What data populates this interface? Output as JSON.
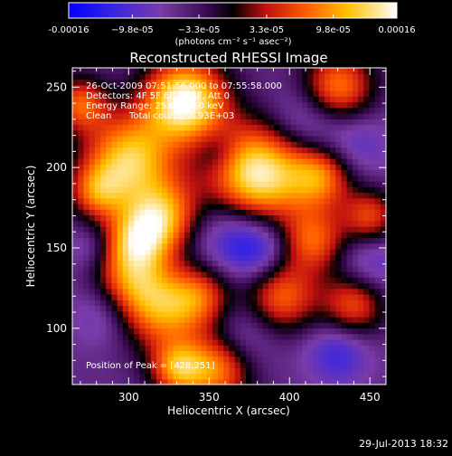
{
  "chart_data": {
    "type": "heatmap",
    "title": "Reconstructed RHESSI Image",
    "xlabel": "Heliocentric X (arcsec)",
    "ylabel": "Heliocentric Y (arcsec)",
    "xlim": [
      265,
      460
    ],
    "ylim": [
      65,
      262
    ],
    "x_ticks": [
      300,
      350,
      400,
      450
    ],
    "y_ticks": [
      100,
      150,
      200,
      250
    ],
    "colorbar": {
      "min": -0.00016,
      "max": 0.00016,
      "tick_values": [
        -0.00016,
        -9.8e-05,
        -3.3e-05,
        3.3e-05,
        9.8e-05,
        0.00016
      ],
      "tick_labels": [
        "-0.00016",
        "−9.8e-05",
        "−3.3e-05",
        "3.3e-05",
        "9.8e-05",
        "0.00016"
      ],
      "unit_label": "(photons cm⁻² s⁻¹ asec⁻²)",
      "colormap": [
        "#0000ff",
        "#6a3cc8",
        "#3a0a50",
        "#000000",
        "#c01010",
        "#ff7a00",
        "#ffd000",
        "#ffffff"
      ]
    },
    "annotations": {
      "time_range": "26-Oct-2009 07:51:56.000 to 07:55:58.000",
      "detectors": "Detectors: 4F 5F 6F 7F 8F, Att 0",
      "energy_range": "Energy Range: 25.0 - 50.0 keV",
      "algorithm": "Clean",
      "total_counts": "Total counts: 6.93E+03",
      "peak_position": "Position of Peak = [428,251]"
    },
    "peak": {
      "x": 428,
      "y": 251
    },
    "blobs": [
      {
        "x": 335,
        "y": 242,
        "v": 1.0,
        "s": 18
      },
      {
        "x": 380,
        "y": 196,
        "v": 0.95,
        "s": 22
      },
      {
        "x": 300,
        "y": 205,
        "v": 0.75,
        "s": 20
      },
      {
        "x": 322,
        "y": 170,
        "v": 0.55,
        "s": 16
      },
      {
        "x": 305,
        "y": 155,
        "v": 0.5,
        "s": 14
      },
      {
        "x": 300,
        "y": 130,
        "v": 0.35,
        "s": 16
      },
      {
        "x": 320,
        "y": 112,
        "v": 0.5,
        "s": 18
      },
      {
        "x": 345,
        "y": 120,
        "v": 0.3,
        "s": 14
      },
      {
        "x": 355,
        "y": 75,
        "v": 0.55,
        "s": 16
      },
      {
        "x": 330,
        "y": 75,
        "v": 0.45,
        "s": 12
      },
      {
        "x": 430,
        "y": 250,
        "v": 0.55,
        "s": 16
      },
      {
        "x": 420,
        "y": 195,
        "v": 0.45,
        "s": 14
      },
      {
        "x": 415,
        "y": 155,
        "v": 0.4,
        "s": 14
      },
      {
        "x": 395,
        "y": 120,
        "v": 0.45,
        "s": 16
      },
      {
        "x": 440,
        "y": 115,
        "v": 0.4,
        "s": 14
      },
      {
        "x": 450,
        "y": 170,
        "v": 0.35,
        "s": 12
      },
      {
        "x": 270,
        "y": 240,
        "v": 0.4,
        "s": 12
      },
      {
        "x": 280,
        "y": 185,
        "v": 0.3,
        "s": 12
      },
      {
        "x": 360,
        "y": 160,
        "v": -0.35,
        "s": 18
      },
      {
        "x": 380,
        "y": 150,
        "v": -0.45,
        "s": 14
      },
      {
        "x": 410,
        "y": 230,
        "v": -0.35,
        "s": 16
      },
      {
        "x": 440,
        "y": 215,
        "v": -0.3,
        "s": 16
      },
      {
        "x": 285,
        "y": 110,
        "v": -0.3,
        "s": 14
      },
      {
        "x": 370,
        "y": 95,
        "v": -0.3,
        "s": 16
      },
      {
        "x": 430,
        "y": 85,
        "v": -0.4,
        "s": 14
      },
      {
        "x": 450,
        "y": 140,
        "v": -0.3,
        "s": 14
      },
      {
        "x": 355,
        "y": 210,
        "v": -0.25,
        "s": 10
      },
      {
        "x": 275,
        "y": 150,
        "v": -0.2,
        "s": 10
      }
    ]
  },
  "footer": {
    "date": "29-Jul-2013 18:32"
  }
}
